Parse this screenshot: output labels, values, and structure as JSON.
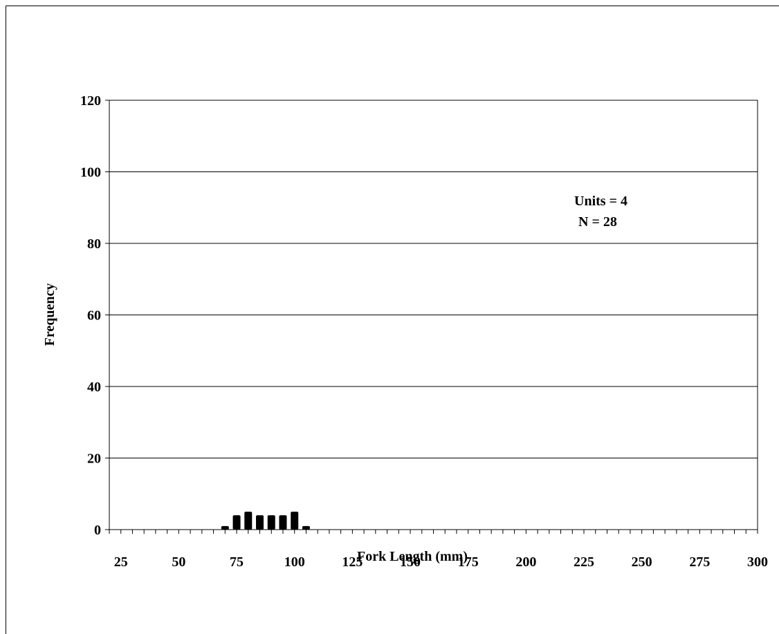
{
  "chart_data": {
    "type": "bar",
    "xlabel": "Fork Length (mm)",
    "ylabel": "Frequency",
    "ylim": [
      0,
      120
    ],
    "yticks": [
      0,
      20,
      40,
      60,
      80,
      100,
      120
    ],
    "xlim": [
      20,
      300
    ],
    "xticks": [
      25,
      50,
      75,
      100,
      125,
      150,
      175,
      200,
      225,
      250,
      275,
      300
    ],
    "minor_tick_step": 5,
    "grid": "horizontal",
    "annotations": [
      "Units = 4",
      "N = 28"
    ],
    "bar_color": "#000000",
    "bins": [
      70,
      75,
      80,
      85,
      90,
      95,
      100,
      105
    ],
    "values": [
      1,
      4,
      5,
      4,
      4,
      4,
      5,
      1
    ]
  }
}
